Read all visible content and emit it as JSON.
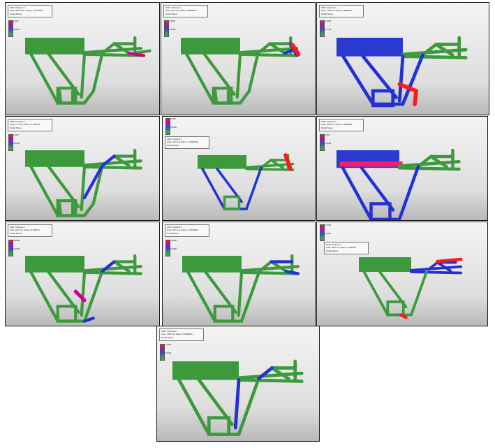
{
  "panels": [
    {
      "legend": [
        "ODP: Channel 1",
        "Freq: 822.00 Hz, Damp: 0.0079994",
        "Nodal Stress"
      ],
      "scale_top": "1.000",
      "scale_mid": "0.5007"
    },
    {
      "legend": [
        "ODP: Channel 1",
        "Freq: 1027 Hz, Damp: 0.0090949",
        "Nodal Stress"
      ],
      "scale_top": "0.8000",
      "scale_mid": "0.4000"
    },
    {
      "legend": [
        "ODP: Channel 1",
        "Freq: 1252 Hz, Damp: 0.0085073",
        "Nodal Stress"
      ],
      "scale_top": "0.3400",
      "scale_mid": "0.1700"
    },
    {
      "legend": [
        "ODP: Channel 1",
        "Freq: 1717 Hz, Damp: 0.013670",
        "Nodal Stress"
      ],
      "scale_top": "1.100",
      "scale_mid": "0.5500"
    },
    {
      "legend": [
        "ODP: Channel 1",
        "Freq: 1917 Hz, Damp: 0.0108449",
        "Nodal Stress"
      ],
      "scale_top": "1.000",
      "scale_mid": "0.5000"
    },
    {
      "legend": [
        "ODP: Channel 1",
        "Freq: 2024 Hz, Damp: 0.0082041",
        "Nodal Stress"
      ],
      "scale_top": "1.000",
      "scale_mid": "0.5000"
    },
    {
      "legend": [
        "ODP: Channel 1",
        "Freq: 2217 Hz, Damp: 0.010671",
        "Nodal Stress"
      ],
      "scale_top": "0.8000",
      "scale_mid": "0.4000"
    },
    {
      "legend": [
        "ODP: Channel 1",
        "Freq: 2577 Hz, Damp: 0.0104003",
        "Nodal Stress"
      ],
      "scale_top": "0.8000",
      "scale_mid": "0.4000"
    },
    {
      "legend": [
        "ODP: Channel 1",
        "Freq: 2877 Hz, Damp: 0.010679",
        "Nodal Stress"
      ],
      "scale_top": "0.7000",
      "scale_mid": "0.3500"
    },
    {
      "legend": [
        "ODP: Channel 1",
        "Freq: 3181 Hz, Damp: 0.0092873",
        "Nodal Stress"
      ],
      "scale_top": "0.7000",
      "scale_mid": "0.3500"
    }
  ],
  "colors": {
    "frame_green": "#3c9a3c",
    "stress_blue": "#2230d8",
    "stress_red": "#ff1a1a",
    "stress_magenta": "#d0008c"
  }
}
